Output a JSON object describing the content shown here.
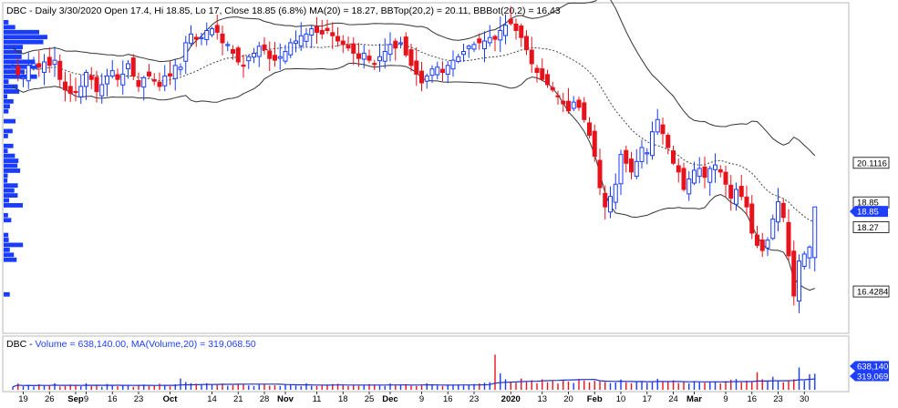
{
  "price_panel": {
    "title_line": "DBC - Daily 3/30/2020 Open 17.4, Hi 18.85, Lo 17, Close 18.85 (6.8%) MA(20) = 18.27, BBTop(20,2) = 20.11, BBBot(20,2) = 16.43",
    "tags": [
      {
        "label": "20.1116",
        "value": 20.1116,
        "style": "plain"
      },
      {
        "label": "18.85",
        "value": 18.98,
        "style": "plain"
      },
      {
        "label": "18.85",
        "value": 18.72,
        "style": "blue"
      },
      {
        "label": "18.27",
        "value": 18.27,
        "style": "plain"
      },
      {
        "label": "16.4284",
        "value": 16.4284,
        "style": "plain"
      }
    ]
  },
  "volume_panel": {
    "title_prefix": "DBC - ",
    "title_volume": "Volume = 638,140.00,",
    "title_ma": "MA(Volume,20) = 319,068.50",
    "tags": [
      {
        "label": "638,140",
        "value": 638140,
        "style": "blue"
      },
      {
        "label": "319,069",
        "value": 319069,
        "style": "blue"
      }
    ]
  },
  "x_axis": {
    "ticks": [
      {
        "label": "19",
        "bar": 2,
        "bold": false
      },
      {
        "label": "26",
        "bar": 7,
        "bold": false
      },
      {
        "label": "Sep",
        "bar": 12,
        "bold": true
      },
      {
        "label": "9",
        "bar": 14,
        "bold": false
      },
      {
        "label": "16",
        "bar": 19,
        "bold": false
      },
      {
        "label": "23",
        "bar": 24,
        "bold": false
      },
      {
        "label": "Oct",
        "bar": 30,
        "bold": true
      },
      {
        "label": "14",
        "bar": 38,
        "bold": false
      },
      {
        "label": "21",
        "bar": 43,
        "bold": false
      },
      {
        "label": "28",
        "bar": 48,
        "bold": false
      },
      {
        "label": "Nov",
        "bar": 52,
        "bold": true
      },
      {
        "label": "11",
        "bar": 58,
        "bold": false
      },
      {
        "label": "18",
        "bar": 63,
        "bold": false
      },
      {
        "label": "25",
        "bar": 68,
        "bold": false
      },
      {
        "label": "Dec",
        "bar": 72,
        "bold": true
      },
      {
        "label": "9",
        "bar": 78,
        "bold": false
      },
      {
        "label": "16",
        "bar": 83,
        "bold": false
      },
      {
        "label": "23",
        "bar": 88,
        "bold": false
      },
      {
        "label": "2020",
        "bar": 95,
        "bold": true
      },
      {
        "label": "13",
        "bar": 101,
        "bold": false
      },
      {
        "label": "20",
        "bar": 106,
        "bold": false
      },
      {
        "label": "Feb",
        "bar": 111,
        "bold": true
      },
      {
        "label": "10",
        "bar": 116,
        "bold": false
      },
      {
        "label": "17",
        "bar": 121,
        "bold": false
      },
      {
        "label": "24",
        "bar": 126,
        "bold": false
      },
      {
        "label": "Mar",
        "bar": 130,
        "bold": true
      },
      {
        "label": "9",
        "bar": 136,
        "bold": false
      },
      {
        "label": "16",
        "bar": 141,
        "bold": false
      },
      {
        "label": "23",
        "bar": 146,
        "bold": false
      },
      {
        "label": "30",
        "bar": 151,
        "bold": false
      }
    ]
  },
  "colors": {
    "up": "#1a3cff",
    "down": "#e8121b",
    "band": "#333333",
    "ma": "#444444",
    "volume_profile": "#1a3cff",
    "volume_ma": "#2030c8",
    "volume_label": "#1f3fff",
    "ma_label": "#1f3fff",
    "tag_blue": "#1f3fff"
  },
  "chart_data": {
    "type": "candlestick",
    "title": "DBC - Daily 3/30/2020 Open 17.4, Hi 18.85, Lo 17, Close 18.85 (6.8%) MA(20) = 18.27, BBTop(20,2) = 20.11, BBBot(20,2) = 16.43",
    "symbol": "DBC",
    "period": "Daily",
    "last_bar": {
      "date": "3/30/2020",
      "open": 17.4,
      "high": 18.85,
      "low": 17.0,
      "close": 18.85,
      "change_pct": 6.8
    },
    "indicators": {
      "MA(20)": 18.27,
      "BBTop(20,2)": 20.11,
      "BBBot(20,2)": 16.43
    },
    "y_range": [
      15.7,
      24.2
    ],
    "closes": [
      22.85,
      22.65,
      22.55,
      22.9,
      22.95,
      22.85,
      23.0,
      22.9,
      23.05,
      22.5,
      22.2,
      22.1,
      22.15,
      22.3,
      22.7,
      22.5,
      22.15,
      22.35,
      22.6,
      22.75,
      22.5,
      22.65,
      22.95,
      22.6,
      22.3,
      22.55,
      22.6,
      22.45,
      22.3,
      22.6,
      22.6,
      22.9,
      22.85,
      23.55,
      23.8,
      23.65,
      23.7,
      23.9,
      23.95,
      23.85,
      23.55,
      23.5,
      23.25,
      23.0,
      22.9,
      23.15,
      23.25,
      23.45,
      23.35,
      23.1,
      23.05,
      23.15,
      23.3,
      23.55,
      23.6,
      23.75,
      23.8,
      23.95,
      23.85,
      23.8,
      23.9,
      23.75,
      23.6,
      23.5,
      23.4,
      23.25,
      23.1,
      23.25,
      23.05,
      22.95,
      23.15,
      23.3,
      23.5,
      23.4,
      23.55,
      23.2,
      22.9,
      22.65,
      22.4,
      22.6,
      22.8,
      22.85,
      22.7,
      22.9,
      23.05,
      23.15,
      23.3,
      23.45,
      23.5,
      23.55,
      23.6,
      23.7,
      23.65,
      23.9,
      24.05,
      24.1,
      23.9,
      23.7,
      23.35,
      22.95,
      22.7,
      22.5,
      22.35,
      22.2,
      22.0,
      21.8,
      21.6,
      21.85,
      21.7,
      21.35,
      20.9,
      20.3,
      19.4,
      18.85,
      19.15,
      19.5,
      20.35,
      20.1,
      19.85,
      20.15,
      20.55,
      20.4,
      21.0,
      21.35,
      20.95,
      20.55,
      20.1,
      19.85,
      19.35,
      19.65,
      19.9,
      19.95,
      19.7,
      19.95,
      20.05,
      19.85,
      19.5,
      19.1,
      19.35,
      19.15,
      18.85,
      18.1,
      17.75,
      17.6,
      17.9,
      18.5,
      19.0,
      18.55,
      17.45,
      16.3,
      17.3,
      17.5,
      17.7,
      18.85
    ],
    "volume": {
      "last": 638140,
      "ma20": 319068.5,
      "values": [
        120000,
        250000,
        140000,
        200000,
        130000,
        220000,
        160000,
        180000,
        260000,
        130000,
        150000,
        210000,
        170000,
        140000,
        260000,
        150000,
        190000,
        120000,
        230000,
        160000,
        140000,
        200000,
        180000,
        120000,
        170000,
        210000,
        150000,
        160000,
        240000,
        190000,
        140000,
        220000,
        450000,
        310000,
        260000,
        240000,
        230000,
        260000,
        210000,
        190000,
        250000,
        160000,
        180000,
        220000,
        230000,
        170000,
        150000,
        200000,
        240000,
        160000,
        180000,
        150000,
        220000,
        200000,
        170000,
        140000,
        260000,
        160000,
        150000,
        180000,
        200000,
        230000,
        240000,
        190000,
        150000,
        180000,
        160000,
        200000,
        230000,
        210000,
        170000,
        150000,
        250000,
        190000,
        180000,
        210000,
        160000,
        150000,
        180000,
        260000,
        200000,
        170000,
        150000,
        180000,
        190000,
        210000,
        170000,
        200000,
        230000,
        250000,
        280000,
        300000,
        1400000,
        650000,
        420000,
        330000,
        280000,
        450000,
        330000,
        380000,
        260000,
        420000,
        300000,
        350000,
        250000,
        400000,
        330000,
        270000,
        430000,
        370000,
        300000,
        360000,
        330000,
        310000,
        270000,
        290000,
        410000,
        300000,
        260000,
        330000,
        340000,
        280000,
        300000,
        440000,
        310000,
        320000,
        380000,
        270000,
        300000,
        260000,
        350000,
        300000,
        280000,
        330000,
        310000,
        250000,
        350000,
        400000,
        430000,
        290000,
        360000,
        320000,
        700000,
        420000,
        350000,
        520000,
        380000,
        300000,
        340000,
        420000,
        890000,
        360000,
        620000,
        638140
      ]
    }
  }
}
